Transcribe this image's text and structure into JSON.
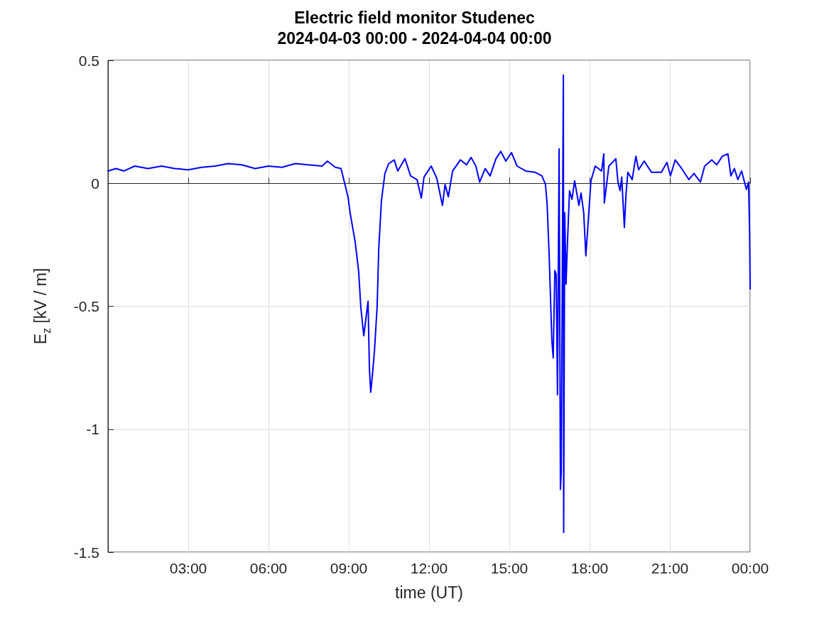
{
  "chart_data": {
    "type": "line",
    "title": "Electric field monitor Studenec",
    "subtitle": "2024-04-03 00:00 - 2024-04-04 00:00",
    "xlabel": "time (UT)",
    "ylabel": "E$_{z}$ [kV / m]",
    "xlim": [
      0,
      24
    ],
    "xticks": [
      {
        "value": 3,
        "label": "03:00"
      },
      {
        "value": 6,
        "label": "06:00"
      },
      {
        "value": 9,
        "label": "09:00"
      },
      {
        "value": 12,
        "label": "12:00"
      },
      {
        "value": 15,
        "label": "15:00"
      },
      {
        "value": 18,
        "label": "18:00"
      },
      {
        "value": 21,
        "label": "21:00"
      },
      {
        "value": 24,
        "label": "00:00"
      }
    ],
    "ylim": [
      -1.5,
      0.5
    ],
    "yticks": [
      -1.5,
      -1,
      -0.5,
      0,
      0.5
    ],
    "grid": true,
    "marker": "none",
    "line_style": "solid",
    "series": [
      {
        "color": "#0000ff",
        "x": [
          0,
          0.3,
          0.6,
          1,
          1.5,
          2,
          2.5,
          3,
          3.5,
          4,
          4.5,
          5,
          5.5,
          6,
          6.5,
          7,
          7.5,
          8,
          8.2,
          8.5,
          8.71,
          8.97,
          9.05,
          9.24,
          9.37,
          9.45,
          9.56,
          9.72,
          9.77,
          9.82,
          9.9,
          9.96,
          10.06,
          10.12,
          10.22,
          10.35,
          10.49,
          10.7,
          10.83,
          11.1,
          11.31,
          11.55,
          11.71,
          11.81,
          12.08,
          12.29,
          12.5,
          12.6,
          12.72,
          12.88,
          13.17,
          13.4,
          13.57,
          13.75,
          13.89,
          14.1,
          14.28,
          14.5,
          14.68,
          14.87,
          15.08,
          15.29,
          15.61,
          15.96,
          16.22,
          16.35,
          16.41,
          16.49,
          16.54,
          16.59,
          16.64,
          16.7,
          16.75,
          16.8,
          16.86,
          16.91,
          16.94,
          17.02,
          17.03,
          17.07,
          17.12,
          17.18,
          17.25,
          17.34,
          17.44,
          17.6,
          17.68,
          17.78,
          17.86,
          17.97,
          18.05,
          18.21,
          18.45,
          18.53,
          18.55,
          18.72,
          18.98,
          19.06,
          19.14,
          19.2,
          19.3,
          19.36,
          19.43,
          19.59,
          19.73,
          19.83,
          20.04,
          20.31,
          20.68,
          20.89,
          21.02,
          21.2,
          21.44,
          21.71,
          21.9,
          22.14,
          22.3,
          22.57,
          22.75,
          22.96,
          23.17,
          23.28,
          23.41,
          23.54,
          23.68,
          23.86,
          23.94,
          23.98,
          24
        ],
        "values": [
          0.05,
          0.06,
          0.05,
          0.07,
          0.06,
          0.07,
          0.06,
          0.055,
          0.065,
          0.07,
          0.08,
          0.075,
          0.06,
          0.07,
          0.065,
          0.08,
          0.075,
          0.07,
          0.09,
          0.065,
          0.06,
          -0.055,
          -0.12,
          -0.24,
          -0.36,
          -0.505,
          -0.62,
          -0.48,
          -0.75,
          -0.85,
          -0.76,
          -0.68,
          -0.5,
          -0.265,
          -0.07,
          0.04,
          0.08,
          0.095,
          0.05,
          0.1,
          0.03,
          0.015,
          -0.06,
          0.025,
          0.07,
          0.02,
          -0.09,
          -0.005,
          -0.055,
          0.05,
          0.095,
          0.075,
          0.105,
          0.07,
          0.005,
          0.06,
          0.03,
          0.1,
          0.13,
          0.09,
          0.125,
          0.07,
          0.05,
          0.045,
          0.03,
          -0.005,
          -0.08,
          -0.295,
          -0.47,
          -0.64,
          -0.71,
          -0.355,
          -0.37,
          -0.86,
          0.14,
          -1.245,
          -1.17,
          0.44,
          -1.42,
          -0.12,
          -0.41,
          -0.22,
          -0.03,
          -0.065,
          0.01,
          -0.09,
          -0.04,
          -0.12,
          -0.295,
          -0.12,
          0.01,
          0.07,
          0.05,
          0.12,
          -0.08,
          0.07,
          0.1,
          0.005,
          -0.03,
          0.025,
          -0.18,
          -0.045,
          0.045,
          0.015,
          0.11,
          0.055,
          0.09,
          0.045,
          0.045,
          0.085,
          0.03,
          0.095,
          0.06,
          0.015,
          0.04,
          0.005,
          0.07,
          0.095,
          0.075,
          0.11,
          0.12,
          0.03,
          0.06,
          0.015,
          0.05,
          -0.025,
          0.005,
          -0.2,
          -0.43
        ]
      }
    ]
  }
}
